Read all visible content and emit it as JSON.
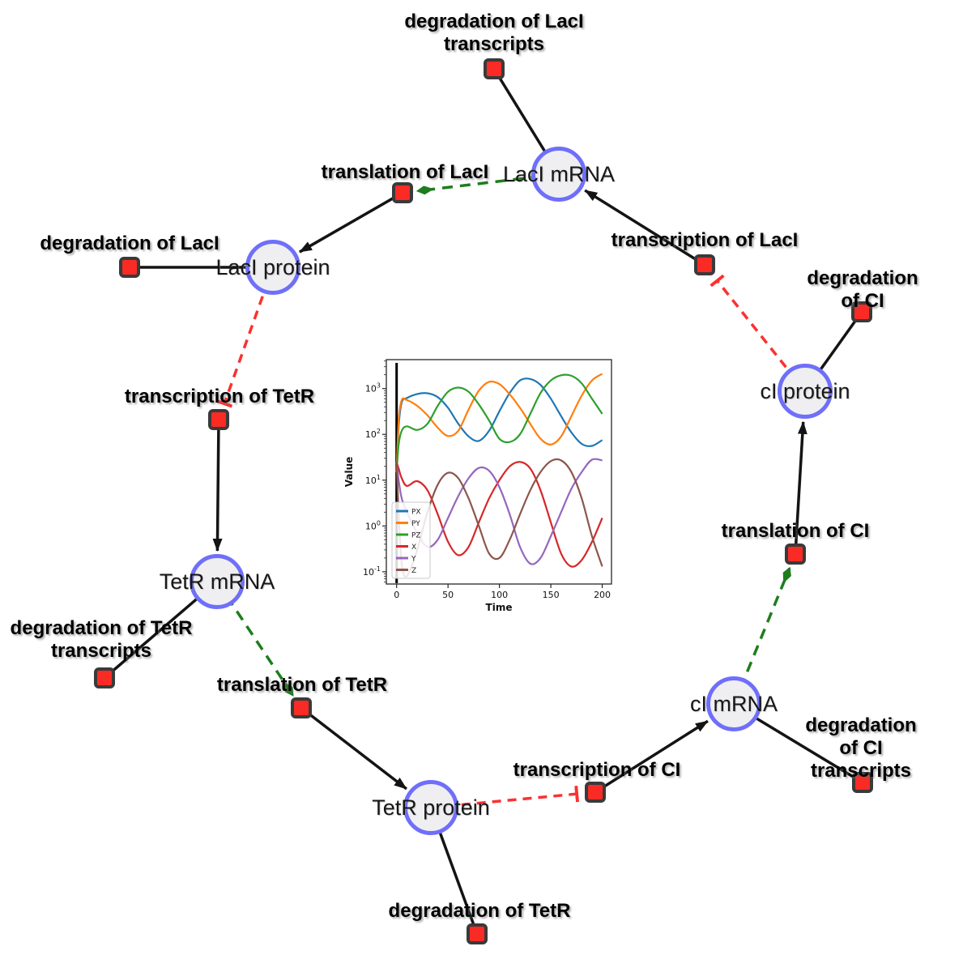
{
  "network": {
    "colors": {
      "species_fill": "#efeff2",
      "species_border": "#6f6ffa",
      "reaction_fill": "#fa2b24",
      "reaction_border": "#3a3a3a",
      "plain_edge": "#141414",
      "activation_edge": "#1e7d1e",
      "inhibition_edge": "#fb3131"
    },
    "species": [
      {
        "id": "laci-mrna",
        "label": "LacI mRNA"
      },
      {
        "id": "laci-protein",
        "label": "LacI protein"
      },
      {
        "id": "tetr-mrna",
        "label": "TetR mRNA"
      },
      {
        "id": "tetr-protein",
        "label": "TetR protein"
      },
      {
        "id": "ci-mrna",
        "label": "cI mRNA"
      },
      {
        "id": "ci-protein",
        "label": "cI protein"
      }
    ],
    "reactions": [
      {
        "id": "deg-laci-transcripts",
        "label": "degradation of LacI\ntranscripts"
      },
      {
        "id": "translation-laci",
        "label": "translation of LacI"
      },
      {
        "id": "deg-laci",
        "label": "degradation of LacI"
      },
      {
        "id": "transcription-laci",
        "label": "transcription of LacI"
      },
      {
        "id": "deg-ci",
        "label": "degradation of CI"
      },
      {
        "id": "transcription-tetr",
        "label": "transcription of TetR"
      },
      {
        "id": "deg-tetr-transcripts",
        "label": "degradation of TetR\ntranscripts"
      },
      {
        "id": "translation-tetr",
        "label": "translation of TetR"
      },
      {
        "id": "deg-tetr",
        "label": "degradation of TetR"
      },
      {
        "id": "transcription-ci",
        "label": "transcription of CI"
      },
      {
        "id": "deg-ci-transcripts",
        "label": "degradation of CI\ntranscripts"
      },
      {
        "id": "translation-ci",
        "label": "translation of CI"
      }
    ]
  },
  "chart_data": {
    "type": "line",
    "title": "",
    "xlabel": "Time",
    "ylabel": "Value",
    "yscale": "log",
    "xlim": [
      -10,
      209
    ],
    "ylim": [
      0.054,
      4280
    ],
    "xticks": [
      0,
      50,
      100,
      150,
      200
    ],
    "ytick_exponents": [
      -1,
      0,
      1,
      2,
      3
    ],
    "legend_position": "lower left",
    "grid": false,
    "vline_x": 0,
    "x": [
      0,
      2,
      5,
      10,
      20,
      30,
      40,
      50,
      60,
      70,
      80,
      90,
      100,
      110,
      120,
      130,
      140,
      150,
      160,
      170,
      180,
      190,
      200
    ],
    "series": [
      {
        "name": "PX",
        "color": "#1f77b4",
        "values": [
          15,
          150,
          500,
          620,
          760,
          790,
          650,
          380,
          170,
          90,
          72,
          120,
          320,
          800,
          1500,
          1620,
          1200,
          600,
          250,
          110,
          62,
          56,
          75
        ]
      },
      {
        "name": "PY",
        "color": "#ff7f0e",
        "values": [
          15,
          200,
          560,
          560,
          420,
          260,
          140,
          92,
          120,
          350,
          900,
          1400,
          1250,
          750,
          380,
          170,
          80,
          60,
          90,
          250,
          700,
          1500,
          2100
        ]
      },
      {
        "name": "PZ",
        "color": "#2ca02c",
        "values": [
          15,
          60,
          120,
          150,
          125,
          170,
          420,
          850,
          1050,
          850,
          450,
          200,
          80,
          68,
          100,
          280,
          800,
          1500,
          1950,
          1900,
          1300,
          600,
          280
        ]
      },
      {
        "name": "X",
        "color": "#d62728",
        "values": [
          25,
          18,
          11,
          7.5,
          9.5,
          6,
          1.8,
          0.45,
          0.23,
          0.35,
          1.2,
          4,
          10,
          20,
          25,
          18,
          6,
          1.2,
          0.25,
          0.13,
          0.18,
          0.45,
          1.5
        ]
      },
      {
        "name": "Y",
        "color": "#9467bd",
        "values": [
          25,
          10,
          4,
          2,
          0.7,
          0.35,
          0.5,
          1.5,
          4.5,
          11,
          18.5,
          16,
          7,
          1.8,
          0.35,
          0.15,
          0.2,
          0.6,
          2,
          6.5,
          15,
          28,
          27
        ]
      },
      {
        "name": "Z",
        "color": "#8c564b",
        "values": [
          25,
          2,
          0.15,
          0.08,
          0.3,
          2,
          8,
          14.5,
          11,
          4,
          1,
          0.25,
          0.2,
          0.5,
          1.8,
          6,
          15,
          26,
          27,
          15,
          4,
          0.6,
          0.13
        ]
      }
    ]
  }
}
